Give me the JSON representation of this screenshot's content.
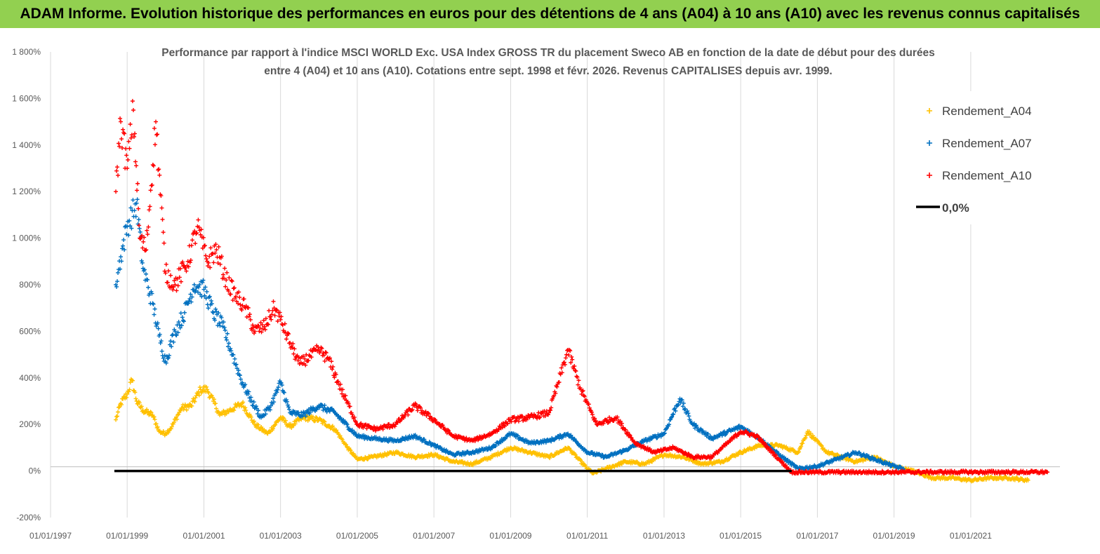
{
  "banner": {
    "title": "ADAM Informe. Evolution historique des performances en euros pour des détentions de 4 ans (A04) à 10 ans (A10) avec les revenus connus capitalisés"
  },
  "colors": {
    "banner_bg": "#92d050",
    "A04": "#ffc000",
    "A07": "#0070c0",
    "A10": "#ff0000",
    "zero_line": "#000000"
  },
  "chart_data": {
    "type": "scatter",
    "title_lines": [
      "Performance par rapport à l'indice MSCI WORLD Exc. USA Index GROSS TR  du placement Sweco AB en fonction de la date de début pour des durées",
      "entre 4 (A04) et 10 ans (A10). Cotations entre sept. 1998 et févr. 2026. Revenus CAPITALISES depuis avr. 1999."
    ],
    "xlabel": "",
    "ylabel": "",
    "x_ticks": [
      "01/01/1997",
      "01/01/1999",
      "01/01/2001",
      "01/01/2003",
      "01/01/2005",
      "01/01/2007",
      "01/01/2009",
      "01/01/2011",
      "01/01/2013",
      "01/01/2015",
      "01/01/2017",
      "01/01/2019",
      "01/01/2021"
    ],
    "xlim": [
      "1997-01-01",
      "2023-05-01"
    ],
    "y_ticks": [
      "-200%",
      "0%",
      "200%",
      "400%",
      "600%",
      "800%",
      "1 000%",
      "1 200%",
      "1 400%",
      "1 600%",
      "1 800%"
    ],
    "ylim": [
      -200,
      1800
    ],
    "grid": "vertical",
    "legend_position": "top-right",
    "series": [
      {
        "name": "Rendement_A04",
        "marker": "+",
        "points": [
          [
            "1998-09-15",
            220
          ],
          [
            "1998-11-01",
            290
          ],
          [
            "1999-01-01",
            330
          ],
          [
            "1999-02-15",
            390
          ],
          [
            "1999-04-01",
            300
          ],
          [
            "1999-06-01",
            260
          ],
          [
            "1999-09-01",
            240
          ],
          [
            "1999-11-01",
            170
          ],
          [
            "2000-01-01",
            160
          ],
          [
            "2000-03-01",
            190
          ],
          [
            "2000-06-01",
            270
          ],
          [
            "2000-09-01",
            280
          ],
          [
            "2000-12-01",
            350
          ],
          [
            "2001-02-01",
            350
          ],
          [
            "2001-04-01",
            300
          ],
          [
            "2001-06-01",
            240
          ],
          [
            "2001-09-01",
            260
          ],
          [
            "2002-01-01",
            290
          ],
          [
            "2002-05-01",
            200
          ],
          [
            "2002-09-01",
            160
          ],
          [
            "2003-01-01",
            230
          ],
          [
            "2003-04-01",
            190
          ],
          [
            "2003-08-01",
            230
          ],
          [
            "2004-01-01",
            220
          ],
          [
            "2004-06-01",
            180
          ],
          [
            "2004-10-01",
            100
          ],
          [
            "2005-01-01",
            50
          ],
          [
            "2005-06-01",
            60
          ],
          [
            "2006-01-01",
            80
          ],
          [
            "2006-07-01",
            60
          ],
          [
            "2007-01-01",
            70
          ],
          [
            "2007-07-01",
            40
          ],
          [
            "2008-01-01",
            30
          ],
          [
            "2008-07-01",
            60
          ],
          [
            "2009-01-01",
            100
          ],
          [
            "2009-07-01",
            80
          ],
          [
            "2010-01-01",
            60
          ],
          [
            "2010-07-01",
            100
          ],
          [
            "2011-01-01",
            10
          ],
          [
            "2011-03-01",
            -10
          ],
          [
            "2011-07-01",
            10
          ],
          [
            "2012-01-01",
            40
          ],
          [
            "2012-07-01",
            30
          ],
          [
            "2013-01-01",
            70
          ],
          [
            "2013-07-01",
            60
          ],
          [
            "2014-01-01",
            30
          ],
          [
            "2014-07-01",
            40
          ],
          [
            "2015-01-01",
            80
          ],
          [
            "2015-07-01",
            110
          ],
          [
            "2016-01-01",
            110
          ],
          [
            "2016-07-01",
            80
          ],
          [
            "2016-10-01",
            170
          ],
          [
            "2017-04-01",
            80
          ],
          [
            "2018-01-01",
            40
          ],
          [
            "2018-07-01",
            60
          ],
          [
            "2019-01-01",
            20
          ],
          [
            "2019-07-01",
            0
          ],
          [
            "2020-01-01",
            -30
          ],
          [
            "2020-07-01",
            -30
          ],
          [
            "2021-01-01",
            -40
          ],
          [
            "2021-07-01",
            -30
          ],
          [
            "2022-01-01",
            -30
          ],
          [
            "2022-07-01",
            -40
          ]
        ]
      },
      {
        "name": "Rendement_A07",
        "marker": "+",
        "points": [
          [
            "1998-09-15",
            800
          ],
          [
            "1998-11-01",
            920
          ],
          [
            "1999-01-01",
            1050
          ],
          [
            "1999-04-01",
            1150
          ],
          [
            "1999-06-01",
            870
          ],
          [
            "1999-09-01",
            720
          ],
          [
            "1999-11-01",
            580
          ],
          [
            "2000-01-01",
            470
          ],
          [
            "2000-04-01",
            600
          ],
          [
            "2000-07-01",
            680
          ],
          [
            "2000-10-01",
            800
          ],
          [
            "2001-01-01",
            780
          ],
          [
            "2001-04-01",
            680
          ],
          [
            "2001-07-01",
            620
          ],
          [
            "2001-10-01",
            500
          ],
          [
            "2002-01-01",
            380
          ],
          [
            "2002-04-01",
            300
          ],
          [
            "2002-07-01",
            230
          ],
          [
            "2002-10-01",
            280
          ],
          [
            "2003-01-01",
            380
          ],
          [
            "2003-04-01",
            250
          ],
          [
            "2003-08-01",
            240
          ],
          [
            "2004-01-01",
            280
          ],
          [
            "2004-06-01",
            250
          ],
          [
            "2005-01-01",
            150
          ],
          [
            "2005-06-01",
            140
          ],
          [
            "2006-01-01",
            130
          ],
          [
            "2006-07-01",
            150
          ],
          [
            "2007-01-01",
            110
          ],
          [
            "2007-07-01",
            70
          ],
          [
            "2008-01-01",
            80
          ],
          [
            "2008-07-01",
            100
          ],
          [
            "2009-01-01",
            160
          ],
          [
            "2009-07-01",
            120
          ],
          [
            "2010-01-01",
            130
          ],
          [
            "2010-07-01",
            160
          ],
          [
            "2011-01-01",
            80
          ],
          [
            "2011-07-01",
            60
          ],
          [
            "2012-01-01",
            90
          ],
          [
            "2012-07-01",
            130
          ],
          [
            "2013-01-01",
            160
          ],
          [
            "2013-06-01",
            310
          ],
          [
            "2013-10-01",
            200
          ],
          [
            "2014-04-01",
            140
          ],
          [
            "2015-01-01",
            190
          ],
          [
            "2015-07-01",
            140
          ],
          [
            "2016-01-01",
            70
          ],
          [
            "2016-07-01",
            10
          ],
          [
            "2017-01-01",
            20
          ],
          [
            "2017-07-01",
            50
          ],
          [
            "2018-01-01",
            80
          ],
          [
            "2018-07-01",
            50
          ],
          [
            "2019-01-01",
            20
          ],
          [
            "2019-04-01",
            10
          ]
        ]
      },
      {
        "name": "Rendement_A10",
        "marker": "+",
        "points": [
          [
            "1998-09-15",
            1200
          ],
          [
            "1998-11-01",
            1500
          ],
          [
            "1999-01-01",
            1300
          ],
          [
            "1999-03-01",
            1550
          ],
          [
            "1999-05-01",
            1000
          ],
          [
            "1999-07-01",
            950
          ],
          [
            "1999-10-01",
            1500
          ],
          [
            "2000-01-01",
            850
          ],
          [
            "2000-04-01",
            800
          ],
          [
            "2000-08-01",
            900
          ],
          [
            "2000-11-01",
            1050
          ],
          [
            "2001-02-01",
            900
          ],
          [
            "2001-05-01",
            950
          ],
          [
            "2001-08-01",
            820
          ],
          [
            "2001-11-01",
            750
          ],
          [
            "2002-02-01",
            700
          ],
          [
            "2002-05-01",
            600
          ],
          [
            "2002-08-01",
            620
          ],
          [
            "2002-11-01",
            700
          ],
          [
            "2003-01-01",
            650
          ],
          [
            "2003-04-01",
            550
          ],
          [
            "2003-07-01",
            460
          ],
          [
            "2004-01-01",
            520
          ],
          [
            "2004-04-01",
            480
          ],
          [
            "2004-08-01",
            350
          ],
          [
            "2005-01-01",
            200
          ],
          [
            "2005-07-01",
            180
          ],
          [
            "2006-01-01",
            200
          ],
          [
            "2006-07-01",
            280
          ],
          [
            "2007-01-01",
            220
          ],
          [
            "2007-07-01",
            150
          ],
          [
            "2008-01-01",
            130
          ],
          [
            "2008-07-01",
            160
          ],
          [
            "2009-01-01",
            220
          ],
          [
            "2009-07-01",
            230
          ],
          [
            "2010-01-01",
            250
          ],
          [
            "2010-04-01",
            380
          ],
          [
            "2010-07-01",
            520
          ],
          [
            "2010-11-01",
            350
          ],
          [
            "2011-04-01",
            200
          ],
          [
            "2011-10-01",
            230
          ],
          [
            "2012-04-01",
            120
          ],
          [
            "2012-10-01",
            80
          ],
          [
            "2013-04-01",
            100
          ],
          [
            "2013-10-01",
            60
          ],
          [
            "2014-04-01",
            60
          ],
          [
            "2015-01-01",
            170
          ],
          [
            "2015-06-01",
            150
          ],
          [
            "2016-01-01",
            50
          ],
          [
            "2016-05-01",
            -5
          ],
          [
            "2017-01-01",
            -5
          ],
          [
            "2018-01-01",
            -5
          ],
          [
            "2019-01-01",
            -5
          ],
          [
            "2020-01-01",
            -5
          ],
          [
            "2021-01-01",
            -5
          ],
          [
            "2022-01-01",
            -5
          ],
          [
            "2023-01-01",
            -5
          ]
        ]
      },
      {
        "name": "0,0%",
        "type": "line",
        "points": [
          [
            "1998-09-01",
            0
          ],
          [
            "2016-05-01",
            0
          ]
        ]
      }
    ]
  }
}
